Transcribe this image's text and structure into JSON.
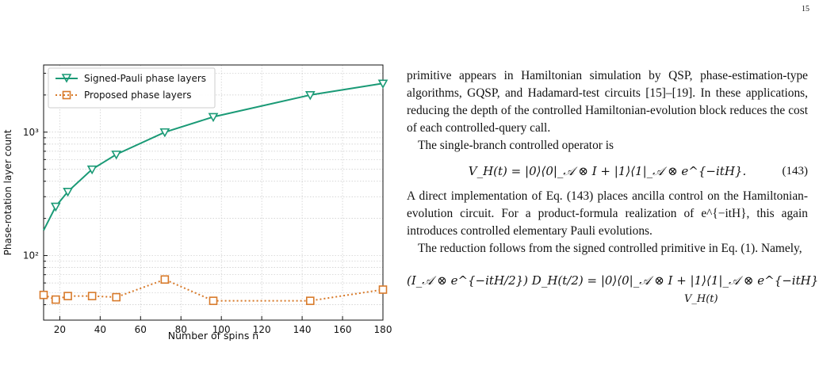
{
  "page": {
    "number": "15"
  },
  "chart_data": {
    "type": "line",
    "xlabel": "Number of spins n",
    "ylabel": "Phase-rotation layer count",
    "xlim": [
      12,
      180
    ],
    "ylim": [
      30,
      3500
    ],
    "yscale": "log",
    "grid": true,
    "legend_placement": "top-left",
    "xticks": [
      20,
      40,
      60,
      80,
      100,
      120,
      140,
      160,
      180
    ],
    "yticks": [
      {
        "value": 100,
        "label": "10²"
      },
      {
        "value": 1000,
        "label": "10³"
      }
    ],
    "series": [
      {
        "name": "Signed-Pauli phase layers",
        "color": "#1a9a76",
        "marker": "triangle-down",
        "line": "solid",
        "x": [
          18,
          24,
          36,
          48,
          72,
          96,
          144,
          180
        ],
        "y": [
          250,
          330,
          500,
          660,
          1000,
          1330,
          2000,
          2480
        ]
      },
      {
        "name": "Proposed phase layers",
        "color": "#d87a2a",
        "marker": "square",
        "line": "dotted",
        "x": [
          12,
          18,
          24,
          36,
          48,
          72,
          96,
          144,
          180
        ],
        "y": [
          48,
          44,
          47,
          47,
          46,
          64,
          43,
          43,
          53
        ]
      }
    ],
    "curve_start": {
      "x": 12,
      "y": 160
    }
  },
  "text": {
    "para1": "primitive appears in Hamiltonian simulation by QSP, phase-estimation-type algorithms, GQSP, and Hadamard-test circuits [15]–[19]. In these applications, reducing the depth of the controlled Hamiltonian-evolution block reduces the cost of each controlled-query call.",
    "para2": "The single-branch controlled operator is",
    "eq143_body": "V_H(t) = |0⟩⟨0|_𝒜 ⊗ I + |1⟩⟨1|_𝒜 ⊗ e^{−itH}.",
    "eq143_number": "(143)",
    "para3": "A direct implementation of Eq. (143) places ancilla control on the Hamiltonian-evolution circuit. For a product-formula realization of e^{−itH}, this again introduces controlled elementary Pauli evolutions.",
    "para4": "The reduction follows from the signed controlled primitive in Eq. (1). Namely,",
    "eq_last_body": "(I_𝒜 ⊗ e^{−itH/2}) D_H(t/2) = |0⟩⟨0|_𝒜 ⊗ I + |1⟩⟨1|_𝒜 ⊗ e^{−itH}",
    "eq_last_under": "V_H(t)"
  }
}
